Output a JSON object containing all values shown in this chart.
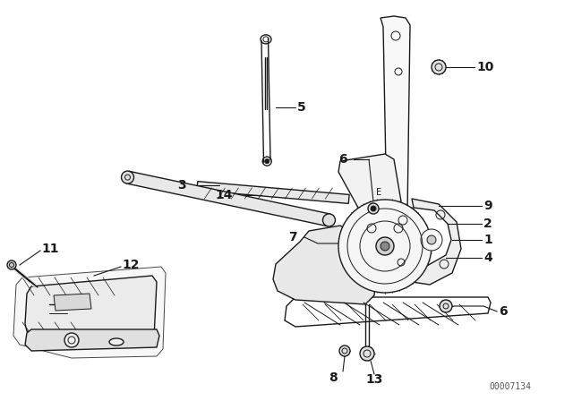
{
  "background_color": "#ffffff",
  "diagram_color": "#1a1a1a",
  "part_number_code": "00007134",
  "fig_width": 6.4,
  "fig_height": 4.48,
  "dpi": 100
}
